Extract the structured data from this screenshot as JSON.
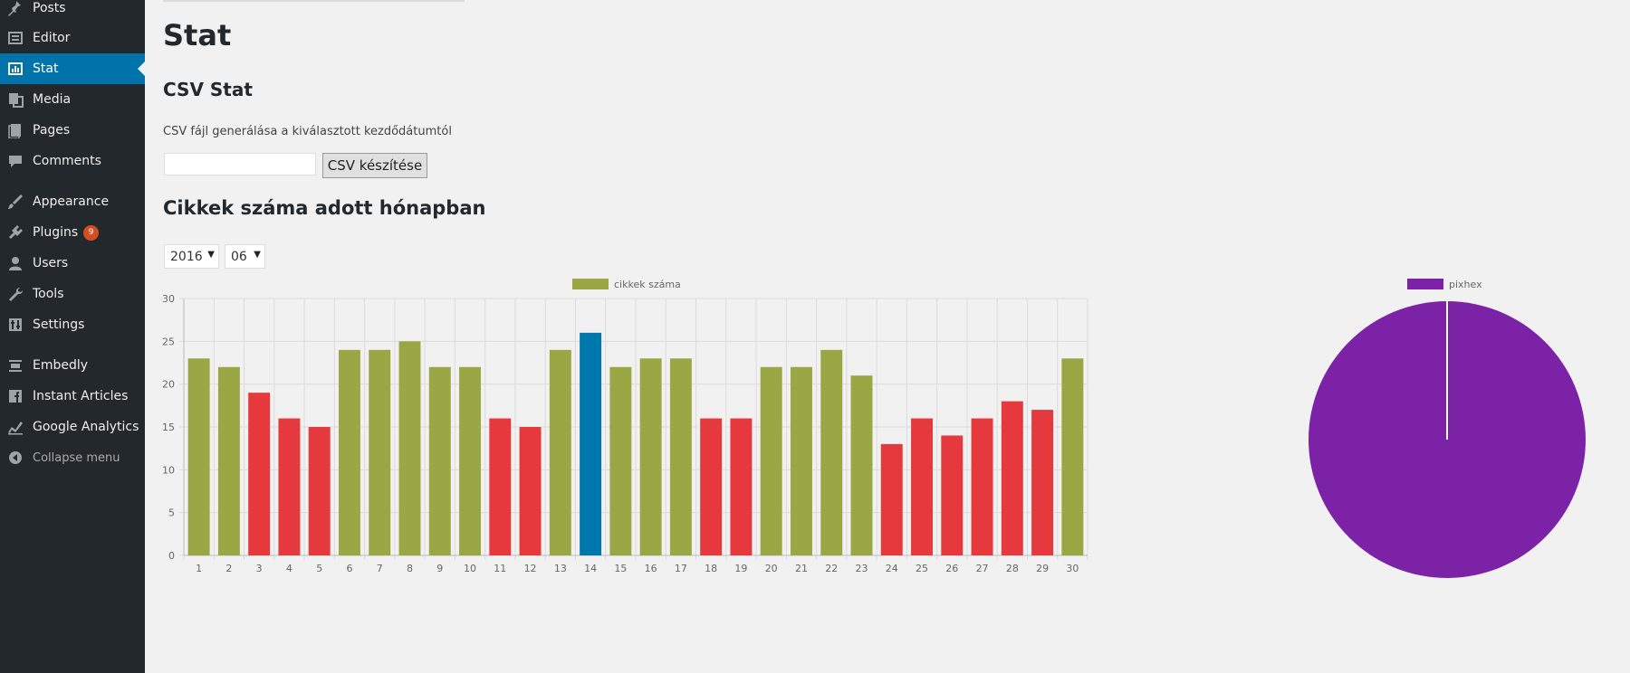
{
  "sidebar": {
    "items": [
      {
        "label": "Posts",
        "icon": "pin-icon",
        "name": "sidebar-item-posts",
        "active": false,
        "badge": null
      },
      {
        "label": "Editor",
        "icon": "editor-icon",
        "name": "sidebar-item-editor",
        "active": false,
        "badge": null
      },
      {
        "label": "Stat",
        "icon": "stat-icon",
        "name": "sidebar-item-stat",
        "active": true,
        "badge": null
      },
      {
        "label": "Media",
        "icon": "media-icon",
        "name": "sidebar-item-media",
        "active": false,
        "badge": null
      },
      {
        "label": "Pages",
        "icon": "pages-icon",
        "name": "sidebar-item-pages",
        "active": false,
        "badge": null
      },
      {
        "label": "Comments",
        "icon": "comment-icon",
        "name": "sidebar-item-comments",
        "active": false,
        "badge": null
      },
      {
        "label": "Appearance",
        "icon": "brush-icon",
        "name": "sidebar-item-appearance",
        "active": false,
        "badge": null
      },
      {
        "label": "Plugins",
        "icon": "plugin-icon",
        "name": "sidebar-item-plugins",
        "active": false,
        "badge": "9"
      },
      {
        "label": "Users",
        "icon": "user-icon",
        "name": "sidebar-item-users",
        "active": false,
        "badge": null
      },
      {
        "label": "Tools",
        "icon": "wrench-icon",
        "name": "sidebar-item-tools",
        "active": false,
        "badge": null
      },
      {
        "label": "Settings",
        "icon": "settings-icon",
        "name": "sidebar-item-settings",
        "active": false,
        "badge": null
      },
      {
        "label": "Embedly",
        "icon": "embed-icon",
        "name": "sidebar-item-embedly",
        "active": false,
        "badge": null
      },
      {
        "label": "Instant Articles",
        "icon": "facebook-icon",
        "name": "sidebar-item-instant-articles",
        "active": false,
        "badge": null
      },
      {
        "label": "Google Analytics",
        "icon": "analytics-icon",
        "name": "sidebar-item-google-analytics",
        "active": false,
        "badge": null
      }
    ],
    "collapse_label": "Collapse menu"
  },
  "page": {
    "title": "Stat",
    "csv_title": "CSV Stat",
    "csv_description": "CSV fájl generálása a kiválasztott kezdődátumtól",
    "csv_input_value": "",
    "csv_button": "CSV készítése",
    "chart_title": "Cikkek száma adott hónapban",
    "year_value": "2016",
    "month_value": "06"
  },
  "colors": {
    "sidebar_bg": "#23282d",
    "active_bg": "#0073aa",
    "bar_green": "#99a845",
    "bar_red": "#e6393d",
    "bar_blue": "#0077aa",
    "pie_purple": "#7b22a6",
    "badge": "#d54e21"
  },
  "chart_data": [
    {
      "type": "bar",
      "legend": [
        "cikkek száma"
      ],
      "legend_position": "top",
      "categories": [
        "1",
        "2",
        "3",
        "4",
        "5",
        "6",
        "7",
        "8",
        "9",
        "10",
        "11",
        "12",
        "13",
        "14",
        "15",
        "16",
        "17",
        "18",
        "19",
        "20",
        "21",
        "22",
        "23",
        "24",
        "25",
        "26",
        "27",
        "28",
        "29",
        "30"
      ],
      "series": [
        {
          "name": "cikkek száma",
          "values": [
            23,
            22,
            19,
            16,
            15,
            24,
            24,
            25,
            22,
            22,
            16,
            15,
            24,
            26,
            22,
            23,
            23,
            16,
            16,
            22,
            22,
            24,
            21,
            13,
            16,
            14,
            16,
            18,
            17,
            23
          ],
          "colors": [
            "green",
            "green",
            "red",
            "red",
            "red",
            "green",
            "green",
            "green",
            "green",
            "green",
            "red",
            "red",
            "green",
            "blue",
            "green",
            "green",
            "green",
            "red",
            "red",
            "green",
            "green",
            "green",
            "green",
            "red",
            "red",
            "red",
            "red",
            "red",
            "red",
            "green"
          ]
        }
      ],
      "yticks": [
        0,
        5,
        10,
        15,
        20,
        25,
        30
      ],
      "ylim": [
        0,
        30
      ],
      "grid": true
    },
    {
      "type": "pie",
      "legend": [
        "pixhex"
      ],
      "legend_position": "top",
      "slices": [
        {
          "name": "pixhex",
          "value": 100
        }
      ]
    }
  ]
}
